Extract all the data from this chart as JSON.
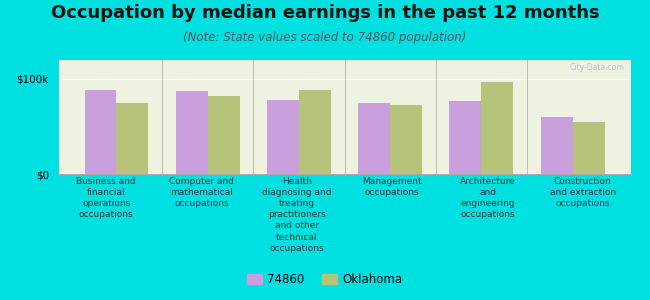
{
  "title": "Occupation by median earnings in the past 12 months",
  "subtitle": "(Note: State values scaled to 74860 population)",
  "background_color": "#00e0e0",
  "plot_bg_color": "#eef2e0",
  "categories": [
    "Business and\nfinancial\noperations\noccupations",
    "Computer and\nmathematical\noccupations",
    "Health\ndiagnosing and\ntreating\npractitioners\nand other\ntechnical\noccupations",
    "Management\noccupations",
    "Architecture\nand\nengineering\noccupations",
    "Construction\nand extraction\noccupations"
  ],
  "values_74860": [
    88000,
    87000,
    78000,
    75000,
    77000,
    60000
  ],
  "values_oklahoma": [
    75000,
    82000,
    88000,
    73000,
    97000,
    55000
  ],
  "color_74860": "#c9a0dc",
  "color_oklahoma": "#b5c47a",
  "ylim": [
    0,
    120000
  ],
  "yticks": [
    0,
    100000
  ],
  "ytick_labels": [
    "$0",
    "$100k"
  ],
  "legend_label_74860": "74860",
  "legend_label_oklahoma": "Oklahoma",
  "bar_width": 0.35,
  "title_fontsize": 13,
  "subtitle_fontsize": 8.5,
  "tick_fontsize": 7.5,
  "xlabel_fontsize": 6.5,
  "watermark": "City-Data.com"
}
